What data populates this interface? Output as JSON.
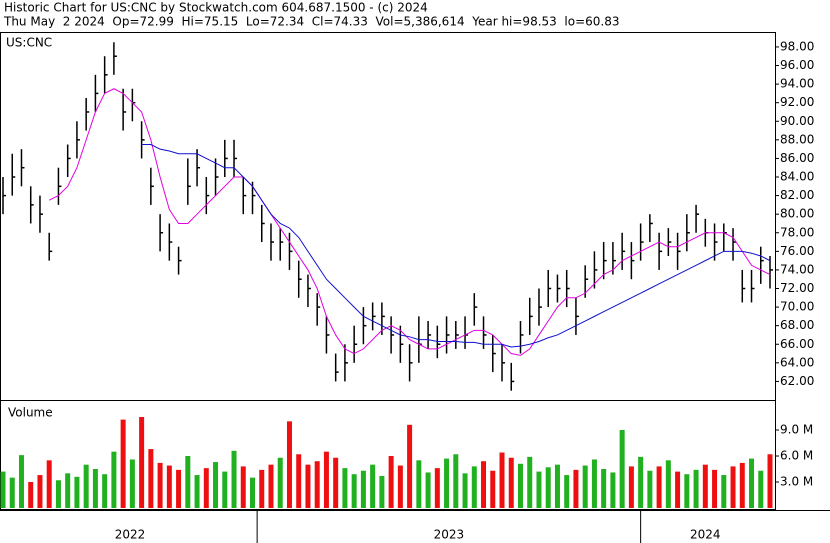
{
  "chart_data": {
    "type": "ohlc",
    "title": "Historic Chart for US:CNC by Stockwatch.com 604.687.1500 - (c) 2024",
    "subtitle": "Thu May  2 2024  Op=72.99  Hi=75.15  Lo=72.34  Cl=74.33  Vol=5,386,614  Year hi=98.53  lo=60.83",
    "symbol": "US:CNC",
    "volume_label": "Volume",
    "xlim": [
      0,
      83
    ],
    "xticks": [
      27.5,
      69
    ],
    "year_labels": [
      "2022",
      "2023",
      "2024"
    ],
    "ylim": [
      60,
      99.5
    ],
    "yticks": [
      {
        "value": 62,
        "label": "62.00"
      },
      {
        "value": 64,
        "label": "64.00"
      },
      {
        "value": 66,
        "label": "66.00"
      },
      {
        "value": 68,
        "label": "68.00"
      },
      {
        "value": 70,
        "label": "70.00"
      },
      {
        "value": 72,
        "label": "72.00"
      },
      {
        "value": 74,
        "label": "74.00"
      },
      {
        "value": 76,
        "label": "76.00"
      },
      {
        "value": 78,
        "label": "78.00"
      },
      {
        "value": 80,
        "label": "80.00"
      },
      {
        "value": 82,
        "label": "82.00"
      },
      {
        "value": 84,
        "label": "84.00"
      },
      {
        "value": 86,
        "label": "86.00"
      },
      {
        "value": 88,
        "label": "88.00"
      },
      {
        "value": 90,
        "label": "90.00"
      },
      {
        "value": 92,
        "label": "92.00"
      },
      {
        "value": 94,
        "label": "94.00"
      },
      {
        "value": 96,
        "label": "96.00"
      },
      {
        "value": 98,
        "label": "98.00"
      }
    ],
    "price_color": "#000000",
    "high": [
      84,
      86.5,
      87,
      83,
      82,
      78,
      85,
      87.5,
      90,
      92.5,
      95,
      97,
      98.5,
      93.5,
      93.5,
      90,
      85,
      80,
      79,
      76.5,
      86,
      87,
      84,
      86,
      88,
      88,
      84,
      83.5,
      81,
      79,
      78.5,
      78,
      75,
      73.5,
      71.5,
      69,
      65,
      66,
      68,
      70,
      70.5,
      70.5,
      69,
      68,
      66,
      69,
      68.5,
      68,
      69,
      68.5,
      69,
      71.5,
      69,
      67,
      66,
      64,
      68.5,
      71,
      72,
      74,
      73.5,
      74,
      71,
      74.5,
      76,
      77,
      77,
      78,
      77,
      79,
      80,
      78,
      78.5,
      78,
      80,
      81,
      79.5,
      79,
      79,
      78.5,
      74,
      74,
      76.5,
      75.5
    ],
    "low": [
      80,
      82,
      83,
      79,
      78,
      75,
      81,
      84,
      86,
      89,
      91,
      93,
      95,
      89,
      90,
      86,
      81,
      76,
      75,
      73.5,
      81,
      83,
      80,
      82,
      84,
      84,
      80,
      80,
      77,
      75,
      75,
      74,
      71,
      70,
      68,
      65,
      62,
      62,
      64,
      66,
      67.5,
      67,
      65,
      64,
      62,
      64,
      65.5,
      64.5,
      65,
      65.5,
      65.5,
      68,
      65.5,
      63,
      62,
      61,
      65,
      67,
      68,
      70,
      70.5,
      70,
      67,
      71,
      72,
      73,
      73.5,
      74,
      73,
      75,
      77,
      74,
      75.5,
      74,
      76,
      78,
      76.5,
      75,
      76,
      75,
      70.5,
      70.5,
      72.5,
      72
    ],
    "series": [
      {
        "name": "close",
        "color": "#000000",
        "values": [
          82,
          84,
          85,
          81,
          80,
          76,
          83,
          86,
          88,
          91,
          93,
          95,
          97,
          91,
          92,
          88,
          83,
          78,
          77,
          75,
          83,
          85,
          82,
          84,
          86,
          86,
          82,
          82,
          79,
          77,
          77,
          76,
          73,
          72,
          70,
          67,
          63,
          64,
          66,
          68,
          69,
          69,
          67,
          66,
          64,
          66,
          67,
          66,
          67,
          67,
          67,
          70,
          67,
          65,
          64,
          62,
          67,
          69,
          70,
          72,
          72,
          72,
          69,
          73,
          74,
          75,
          75,
          76,
          75,
          77,
          79,
          76,
          77,
          76,
          78,
          80,
          78,
          77,
          78,
          77,
          72,
          72,
          75,
          74
        ]
      },
      {
        "name": "ma-short",
        "color": "#e000e0",
        "values": [
          null,
          null,
          null,
          null,
          null,
          81.5,
          82,
          83,
          85,
          88,
          91,
          93,
          93.5,
          93,
          92,
          91,
          88,
          84,
          80.5,
          79,
          79,
          80,
          81,
          82,
          83,
          84,
          84,
          83,
          81.5,
          80,
          78.5,
          77,
          75.5,
          74,
          72,
          69,
          67,
          65.5,
          65,
          65.5,
          66.5,
          67.5,
          68,
          67.5,
          66.5,
          66,
          65.5,
          65.5,
          66,
          66.5,
          67,
          67.5,
          67.5,
          67,
          66,
          65,
          64.8,
          65.5,
          67,
          68.5,
          70,
          71,
          71,
          71.5,
          72.5,
          73.5,
          74,
          75,
          75.5,
          76,
          76.5,
          77,
          76.5,
          76.5,
          77,
          77.5,
          78,
          78,
          78,
          77.5,
          76,
          74.5,
          74,
          73.5
        ]
      },
      {
        "name": "ma-long",
        "color": "#1010d0",
        "values": [
          null,
          null,
          null,
          null,
          null,
          null,
          null,
          null,
          null,
          null,
          null,
          null,
          null,
          null,
          null,
          87.5,
          87.5,
          87,
          86.8,
          86.5,
          86.5,
          86.5,
          86,
          85.5,
          85,
          85,
          84,
          83,
          81.5,
          80,
          79,
          78.5,
          77.5,
          76,
          74.5,
          73,
          72,
          71,
          70,
          69,
          68.5,
          68,
          67.5,
          67,
          66.8,
          66.5,
          66.5,
          66.3,
          66.3,
          66.3,
          66.2,
          66.2,
          66,
          66,
          66,
          65.7,
          65.8,
          66,
          66.3,
          66.7,
          67,
          67.5,
          68,
          68.5,
          69,
          69.5,
          70,
          70.5,
          71,
          71.5,
          72,
          72.5,
          73,
          73.5,
          74,
          74.5,
          75,
          75.5,
          76,
          76,
          76,
          75.8,
          75.5,
          75
        ]
      }
    ],
    "volume": {
      "ylim": [
        0,
        12
      ],
      "yticks": [
        {
          "value": 3,
          "label": "3.0 M"
        },
        {
          "value": 6,
          "label": "6.0 M"
        },
        {
          "value": 9,
          "label": "9.0 M"
        }
      ],
      "up_color": "#20b020",
      "down_color": "#ee1010",
      "values": [
        4.2,
        3.5,
        6.1,
        3,
        3.8,
        5.5,
        3.2,
        4,
        3.6,
        5,
        4.5,
        3.9,
        6.5,
        10.2,
        5.6,
        10.5,
        6.8,
        5.2,
        4.9,
        4.4,
        6,
        3.8,
        4.6,
        5.3,
        4.2,
        6.6,
        4.8,
        3.5,
        4.4,
        5,
        5.8,
        10,
        6.2,
        5,
        5.4,
        6.5,
        5.8,
        4.6,
        3.9,
        4.3,
        5,
        3.7,
        6,
        4.9,
        9.6,
        5.5,
        4.1,
        4.6,
        5.7,
        6.2,
        4,
        4.8,
        5.4,
        4.3,
        6.4,
        5.8,
        5.1,
        5.9,
        4.2,
        4.7,
        5,
        3.8,
        4.4,
        4.9,
        5.6,
        4.5,
        4.1,
        9,
        4.8,
        5.9,
        4.3,
        4.8,
        5.5,
        4.2,
        3.9,
        4.4,
        5,
        4.4,
        3.8,
        4.8,
        5.2,
        5.7,
        4.3,
        6.2
      ]
    }
  }
}
